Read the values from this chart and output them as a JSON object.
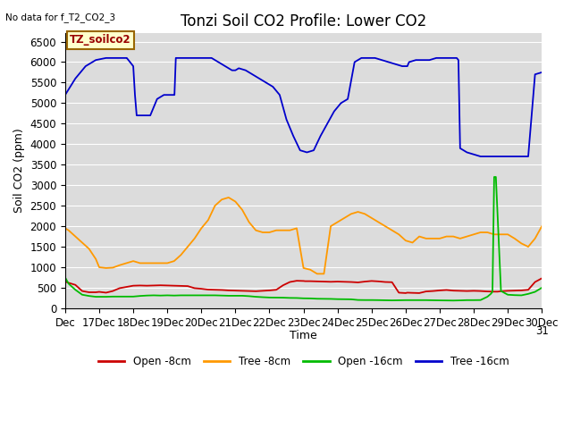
{
  "title": "Tonzi Soil CO2 Profile: Lower CO2",
  "no_data_text": "No data for f_T2_CO2_3",
  "xlabel": "Time",
  "ylabel": "Soil CO2 (ppm)",
  "ylim": [
    0,
    6700
  ],
  "yticks": [
    0,
    500,
    1000,
    1500,
    2000,
    2500,
    3000,
    3500,
    4000,
    4500,
    5000,
    5500,
    6000,
    6500
  ],
  "legend_label": "TZ_soilco2",
  "series_order": [
    "open_8cm",
    "tree_8cm",
    "open_16cm",
    "tree_16cm"
  ],
  "series": {
    "open_8cm": {
      "color": "#cc0000",
      "label": "Open -8cm",
      "x": [
        0,
        0.1,
        0.3,
        0.5,
        0.7,
        0.9,
        1.0,
        1.2,
        1.4,
        1.6,
        1.8,
        2.0,
        2.2,
        2.4,
        2.6,
        2.8,
        3.0,
        3.2,
        3.4,
        3.6,
        3.8,
        4.0,
        4.2,
        4.4,
        4.6,
        4.8,
        5.0,
        5.2,
        5.4,
        5.6,
        5.8,
        6.0,
        6.2,
        6.4,
        6.6,
        6.8,
        7.0,
        7.05,
        7.2,
        7.4,
        7.6,
        7.8,
        8.0,
        8.2,
        8.4,
        8.6,
        8.8,
        9.0,
        9.2,
        9.4,
        9.6,
        9.8,
        10.0,
        10.05,
        10.2,
        10.4,
        10.6,
        10.8,
        11.0,
        11.2,
        11.4,
        11.6,
        11.8,
        12.0,
        12.2,
        12.4,
        12.6,
        12.7,
        12.8,
        13.0,
        13.2,
        13.4,
        13.6,
        13.8,
        14.0
      ],
      "y": [
        650,
        620,
        570,
        420,
        390,
        390,
        400,
        380,
        420,
        490,
        520,
        550,
        555,
        550,
        555,
        560,
        555,
        550,
        545,
        540,
        490,
        475,
        455,
        450,
        445,
        435,
        430,
        425,
        420,
        415,
        425,
        435,
        450,
        560,
        640,
        670,
        665,
        660,
        660,
        655,
        650,
        645,
        650,
        645,
        640,
        630,
        650,
        665,
        655,
        640,
        635,
        380,
        370,
        380,
        375,
        370,
        410,
        420,
        435,
        445,
        430,
        425,
        420,
        425,
        420,
        410,
        405,
        405,
        415,
        425,
        430,
        435,
        450,
        640,
        730
      ]
    },
    "tree_8cm": {
      "color": "#ff9900",
      "label": "Tree -8cm",
      "x": [
        0,
        0.1,
        0.3,
        0.5,
        0.7,
        0.9,
        1.0,
        1.2,
        1.4,
        1.6,
        1.8,
        2.0,
        2.2,
        2.4,
        2.6,
        2.8,
        3.0,
        3.2,
        3.4,
        3.6,
        3.8,
        4.0,
        4.2,
        4.4,
        4.6,
        4.8,
        5.0,
        5.2,
        5.4,
        5.6,
        5.8,
        6.0,
        6.2,
        6.4,
        6.6,
        6.8,
        7.0,
        7.2,
        7.4,
        7.6,
        7.8,
        8.0,
        8.2,
        8.4,
        8.6,
        8.8,
        9.0,
        9.2,
        9.4,
        9.6,
        9.8,
        10.0,
        10.2,
        10.4,
        10.6,
        10.8,
        11.0,
        11.2,
        11.4,
        11.6,
        11.8,
        12.0,
        12.2,
        12.4,
        12.6,
        12.8,
        13.0,
        13.2,
        13.4,
        13.6,
        13.8,
        14.0
      ],
      "y": [
        1950,
        1900,
        1750,
        1600,
        1450,
        1200,
        1000,
        980,
        990,
        1050,
        1100,
        1150,
        1100,
        1100,
        1100,
        1100,
        1100,
        1150,
        1300,
        1500,
        1700,
        1950,
        2150,
        2500,
        2650,
        2700,
        2600,
        2400,
        2100,
        1900,
        1850,
        1850,
        1900,
        1900,
        1900,
        1950,
        980,
        940,
        840,
        840,
        2000,
        2100,
        2200,
        2300,
        2350,
        2300,
        2200,
        2100,
        2000,
        1900,
        1800,
        1650,
        1600,
        1750,
        1700,
        1700,
        1700,
        1750,
        1750,
        1700,
        1750,
        1800,
        1850,
        1850,
        1800,
        1800,
        1800,
        1700,
        1580,
        1500,
        1700,
        2000
      ]
    },
    "open_16cm": {
      "color": "#00bb00",
      "label": "Open -16cm",
      "x": [
        0,
        0.1,
        0.3,
        0.5,
        0.7,
        0.9,
        1.0,
        1.2,
        1.4,
        1.6,
        1.8,
        2.0,
        2.2,
        2.4,
        2.6,
        2.8,
        3.0,
        3.2,
        3.4,
        3.6,
        3.8,
        4.0,
        4.2,
        4.4,
        4.6,
        4.8,
        5.0,
        5.2,
        5.4,
        5.6,
        5.8,
        6.0,
        6.2,
        6.4,
        6.6,
        6.8,
        7.0,
        7.2,
        7.4,
        7.6,
        7.8,
        8.0,
        8.2,
        8.4,
        8.6,
        8.8,
        9.0,
        9.2,
        9.4,
        9.6,
        9.8,
        10.0,
        10.2,
        10.4,
        10.6,
        10.8,
        11.0,
        11.2,
        11.4,
        11.6,
        11.8,
        12.0,
        12.2,
        12.4,
        12.5,
        12.55,
        12.6,
        12.65,
        12.8,
        13.0,
        13.2,
        13.4,
        13.6,
        13.8,
        14.0
      ],
      "y": [
        750,
        600,
        450,
        330,
        300,
        280,
        280,
        280,
        285,
        285,
        285,
        285,
        300,
        310,
        315,
        310,
        315,
        310,
        315,
        315,
        315,
        315,
        315,
        315,
        310,
        305,
        305,
        305,
        295,
        280,
        270,
        262,
        260,
        258,
        252,
        250,
        242,
        240,
        232,
        230,
        228,
        222,
        220,
        218,
        202,
        200,
        200,
        198,
        195,
        192,
        195,
        198,
        198,
        198,
        198,
        195,
        192,
        190,
        188,
        192,
        198,
        198,
        200,
        280,
        350,
        400,
        3200,
        3200,
        420,
        330,
        320,
        315,
        350,
        400,
        500
      ]
    },
    "tree_16cm": {
      "color": "#0000cc",
      "label": "Tree -16cm",
      "x": [
        0,
        0.3,
        0.6,
        0.9,
        1.2,
        1.5,
        1.8,
        1.81,
        2.0,
        2.05,
        2.1,
        2.3,
        2.5,
        2.7,
        2.9,
        3.1,
        3.2,
        3.21,
        3.25,
        3.3,
        3.5,
        3.7,
        3.9,
        4.1,
        4.3,
        4.5,
        4.7,
        4.9,
        5.0,
        5.1,
        5.3,
        5.5,
        5.7,
        5.9,
        6.1,
        6.3,
        6.5,
        6.7,
        6.9,
        7.1,
        7.3,
        7.5,
        7.7,
        7.9,
        8.1,
        8.3,
        8.5,
        8.7,
        8.9,
        9.0,
        9.05,
        9.1,
        9.3,
        9.5,
        9.7,
        9.9,
        10.0,
        10.05,
        10.1,
        10.3,
        10.5,
        10.7,
        10.9,
        11.1,
        11.3,
        11.5,
        11.55,
        11.6,
        11.8,
        12.0,
        12.2,
        12.4,
        12.5,
        12.55,
        12.6,
        12.8,
        13.0,
        13.2,
        13.4,
        13.6,
        13.8,
        14.0
      ],
      "y": [
        5200,
        5600,
        5900,
        6050,
        6100,
        6100,
        6100,
        6100,
        5900,
        5200,
        4700,
        4700,
        4700,
        5100,
        5200,
        5200,
        5200,
        5200,
        6100,
        6100,
        6100,
        6100,
        6100,
        6100,
        6100,
        6000,
        5900,
        5800,
        5800,
        5850,
        5800,
        5700,
        5600,
        5500,
        5400,
        5200,
        4600,
        4200,
        3850,
        3800,
        3850,
        4200,
        4500,
        4800,
        5000,
        5100,
        6000,
        6100,
        6100,
        6100,
        6100,
        6100,
        6050,
        6000,
        5950,
        5900,
        5900,
        5900,
        6000,
        6050,
        6050,
        6050,
        6100,
        6100,
        6100,
        6100,
        6050,
        3900,
        3800,
        3750,
        3700,
        3700,
        3700,
        3700,
        3700,
        3700,
        3700,
        3700,
        3700,
        3700,
        5700,
        5750
      ]
    }
  },
  "xtick_labels": [
    "Dec",
    "17Dec",
    "18Dec",
    "19Dec",
    "20Dec",
    "21Dec",
    "22Dec",
    "23Dec",
    "24Dec",
    "25Dec",
    "26Dec",
    "27Dec",
    "28Dec",
    "29Dec",
    "30Dec"
  ],
  "title_fontsize": 12,
  "axis_label_fontsize": 9,
  "tick_fontsize": 8.5
}
